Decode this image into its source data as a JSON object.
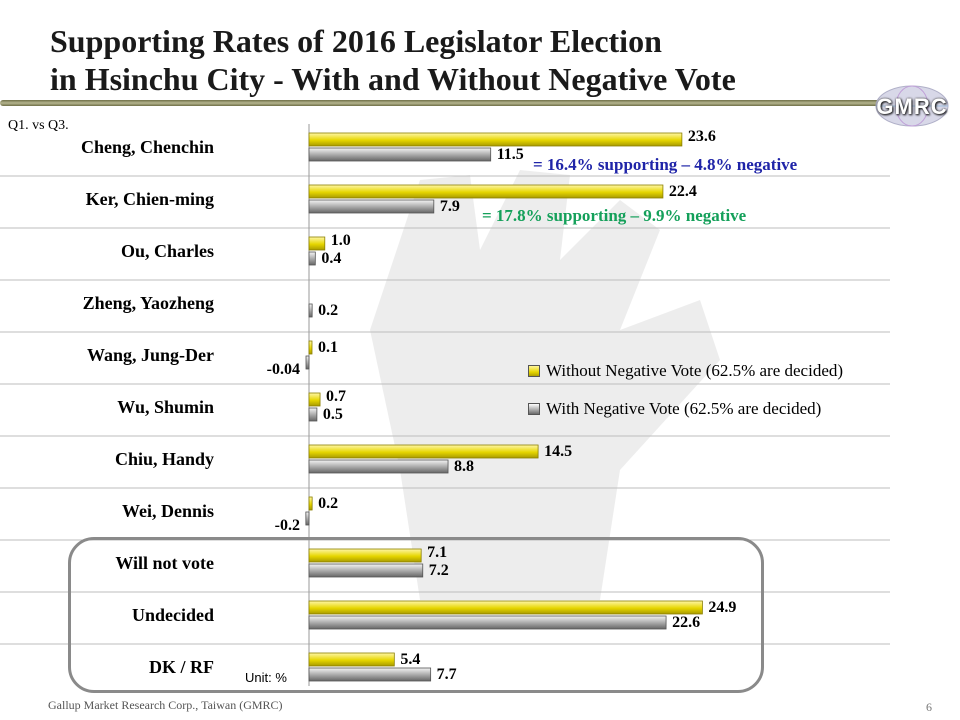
{
  "slide": {
    "title_line1": "Supporting Rates of 2016 Legislator Election",
    "title_line2": "in Hsinchu City - With and Without Negative Vote",
    "question": "Q1. vs Q3.",
    "logo_text": "GMRC",
    "unit": "Unit: %",
    "footer": "Gallup Market Research Corp., Taiwan (GMRC)",
    "page_number": "6",
    "notes": [
      "= 16.4% supporting – 4.8% negative",
      "= 17.8% supporting – 9.9% negative"
    ]
  },
  "colors": {
    "without_negative": "#e6d600",
    "with_negative": "#9a9a9a",
    "note_blue": "#1f24a8",
    "note_green": "#14a05a"
  },
  "chart_data": {
    "type": "bar",
    "orientation": "horizontal",
    "title": "Supporting Rates of 2016 Legislator Election in Hsinchu City - With and Without Negative Vote",
    "xlabel": "",
    "ylabel": "",
    "unit": "%",
    "categories": [
      "Cheng, Chenchin",
      "Ker, Chien-ming",
      "Ou, Charles",
      "Zheng, Yaozheng",
      "Wang, Jung-Der",
      "Wu, Shumin",
      "Chiu, Handy",
      "Wei, Dennis",
      "Will not vote",
      "Undecided",
      "DK / RF"
    ],
    "series": [
      {
        "name": "Without Negative Vote (62.5% are decided)",
        "values": [
          23.6,
          22.4,
          1.0,
          null,
          0.1,
          0.7,
          14.5,
          0.2,
          7.1,
          24.9,
          5.4
        ],
        "labels": [
          "23.6",
          "22.4",
          "1.0",
          "",
          "0.1",
          "0.7",
          "14.5",
          "0.2",
          "7.1",
          "24.9",
          "5.4"
        ]
      },
      {
        "name": "With Negative Vote (62.5% are decided)",
        "values": [
          11.5,
          7.9,
          0.4,
          0.2,
          -0.04,
          0.5,
          8.8,
          -0.2,
          7.2,
          22.6,
          7.7
        ],
        "labels": [
          "11.5",
          "7.9",
          "0.4",
          "0.2",
          "-0.04",
          "0.5",
          "8.8",
          "-0.2",
          "7.2",
          "22.6",
          "7.7"
        ]
      }
    ],
    "xlim": [
      -0.2,
      25
    ],
    "grid": "horizontal separators between categories",
    "legend": "right-middle"
  }
}
